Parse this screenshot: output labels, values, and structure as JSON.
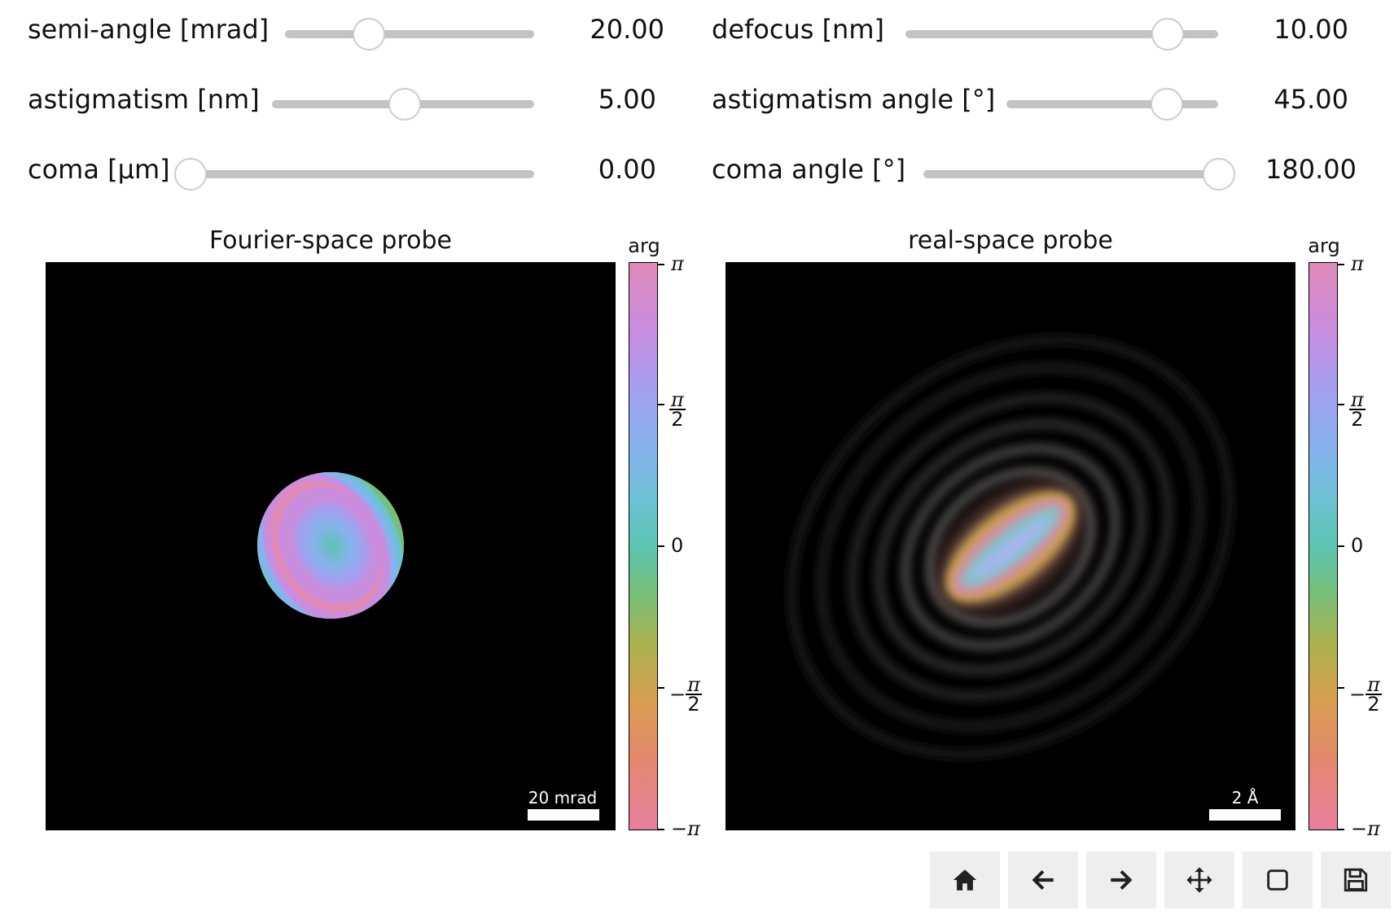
{
  "sliders": [
    {
      "label": "semi-angle [mrad]",
      "value": "20.00",
      "level": 0.33
    },
    {
      "label": "defocus [nm]",
      "value": "10.00",
      "level": 0.83
    },
    {
      "label": "astigmatism [nm]",
      "value": "5.00",
      "level": 0.5
    },
    {
      "label": "astigmatism angle [°]",
      "value": "45.00",
      "level": 0.75
    },
    {
      "label": "coma [µm]",
      "value": "0.00",
      "level": 0.0
    },
    {
      "label": "coma angle [°]",
      "value": "180.00",
      "level": 1.0
    }
  ],
  "plots": {
    "fourier": {
      "title": "Fourier-space probe",
      "scalebar": "20 mrad"
    },
    "real": {
      "title": "real-space probe",
      "scalebar": "2 Å"
    }
  },
  "colorbar": {
    "title": "arg",
    "ticks": {
      "top": "π",
      "half_pos_num": "π",
      "half_den": "2",
      "zero": "0",
      "half_neg_sign": "−",
      "half_neg_num": "π",
      "bottom": "−π"
    }
  },
  "toolbar": {
    "icons": [
      "home-icon",
      "back-arrow-icon",
      "forward-arrow-icon",
      "pan-icon",
      "zoom-rect-icon",
      "save-icon"
    ]
  }
}
